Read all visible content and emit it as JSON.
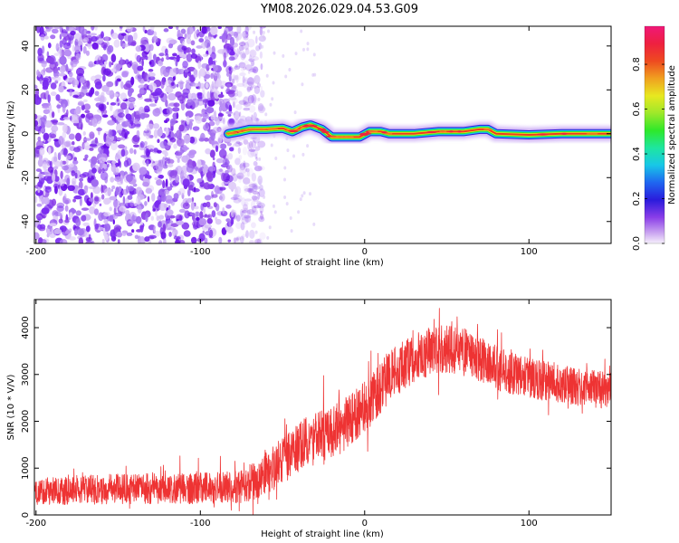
{
  "figure": {
    "title": "YM08.2026.029.04.53.G09"
  },
  "chart_data": [
    {
      "type": "heatmap",
      "name": "spectrogram",
      "xlabel": "Height of straight line (km)",
      "ylabel": "Frequency (Hz)",
      "xlim": [
        -201,
        150
      ],
      "ylim": [
        -50,
        49
      ],
      "xticks": [
        -200,
        -100,
        0,
        100
      ],
      "yticks": [
        -40,
        -20,
        0,
        20,
        40
      ],
      "grid": false,
      "colorbar": {
        "label": "Normalized spectral amplitude",
        "range": [
          0,
          0.97
        ],
        "ticks": [
          0.0,
          0.2,
          0.4,
          0.6,
          0.8
        ],
        "tick_labels": [
          "0.0",
          "0.2",
          "0.4",
          "0.6",
          "0.8"
        ],
        "colormap": "rainbow-violet-to-pink"
      },
      "noise_region_x": [
        -201,
        -70
      ],
      "ridge": {
        "description": "dominant frequency track",
        "points": [
          {
            "x": -83,
            "y": 0
          },
          {
            "x": -76,
            "y": 1
          },
          {
            "x": -70,
            "y": 2
          },
          {
            "x": -60,
            "y": 2
          },
          {
            "x": -50,
            "y": 2.5
          },
          {
            "x": -44,
            "y": 1
          },
          {
            "x": -38,
            "y": 3
          },
          {
            "x": -33,
            "y": 4
          },
          {
            "x": -26,
            "y": 2
          },
          {
            "x": -20,
            "y": -1.5
          },
          {
            "x": -10,
            "y": -1.5
          },
          {
            "x": -3,
            "y": -1.5
          },
          {
            "x": 3,
            "y": 1
          },
          {
            "x": 10,
            "y": 1
          },
          {
            "x": 15,
            "y": 0
          },
          {
            "x": 30,
            "y": 0
          },
          {
            "x": 45,
            "y": 1
          },
          {
            "x": 60,
            "y": 1
          },
          {
            "x": 70,
            "y": 2
          },
          {
            "x": 75,
            "y": 2
          },
          {
            "x": 80,
            "y": 0
          },
          {
            "x": 100,
            "y": -0.5
          },
          {
            "x": 120,
            "y": 0
          },
          {
            "x": 150,
            "y": 0
          }
        ]
      }
    },
    {
      "type": "line",
      "name": "snr",
      "xlabel": "Height of straight line (km)",
      "ylabel": "SNR (10 * V/V)",
      "xlim": [
        -201,
        150
      ],
      "ylim": [
        0,
        4600
      ],
      "xticks": [
        -200,
        -100,
        0,
        100
      ],
      "yticks": [
        0,
        1000,
        2000,
        3000,
        4000
      ],
      "color": "#ee3333",
      "grid": false,
      "envelope": {
        "x": [
          -201,
          -190,
          -170,
          -150,
          -130,
          -110,
          -90,
          -75,
          -65,
          -55,
          -45,
          -35,
          -25,
          -15,
          -5,
          5,
          15,
          25,
          35,
          45,
          55,
          65,
          75,
          85,
          95,
          105,
          115,
          125,
          135,
          150
        ],
        "mean": [
          480,
          520,
          540,
          560,
          560,
          560,
          580,
          620,
          760,
          1020,
          1280,
          1560,
          1720,
          1860,
          2160,
          2500,
          2980,
          3220,
          3420,
          3560,
          3540,
          3420,
          3260,
          3060,
          2960,
          2880,
          2840,
          2760,
          2680,
          2660
        ],
        "spread": [
          260,
          300,
          320,
          320,
          330,
          330,
          340,
          360,
          420,
          480,
          520,
          560,
          560,
          560,
          560,
          560,
          560,
          520,
          520,
          520,
          520,
          500,
          480,
          460,
          440,
          430,
          420,
          400,
          400,
          400
        ]
      }
    }
  ]
}
